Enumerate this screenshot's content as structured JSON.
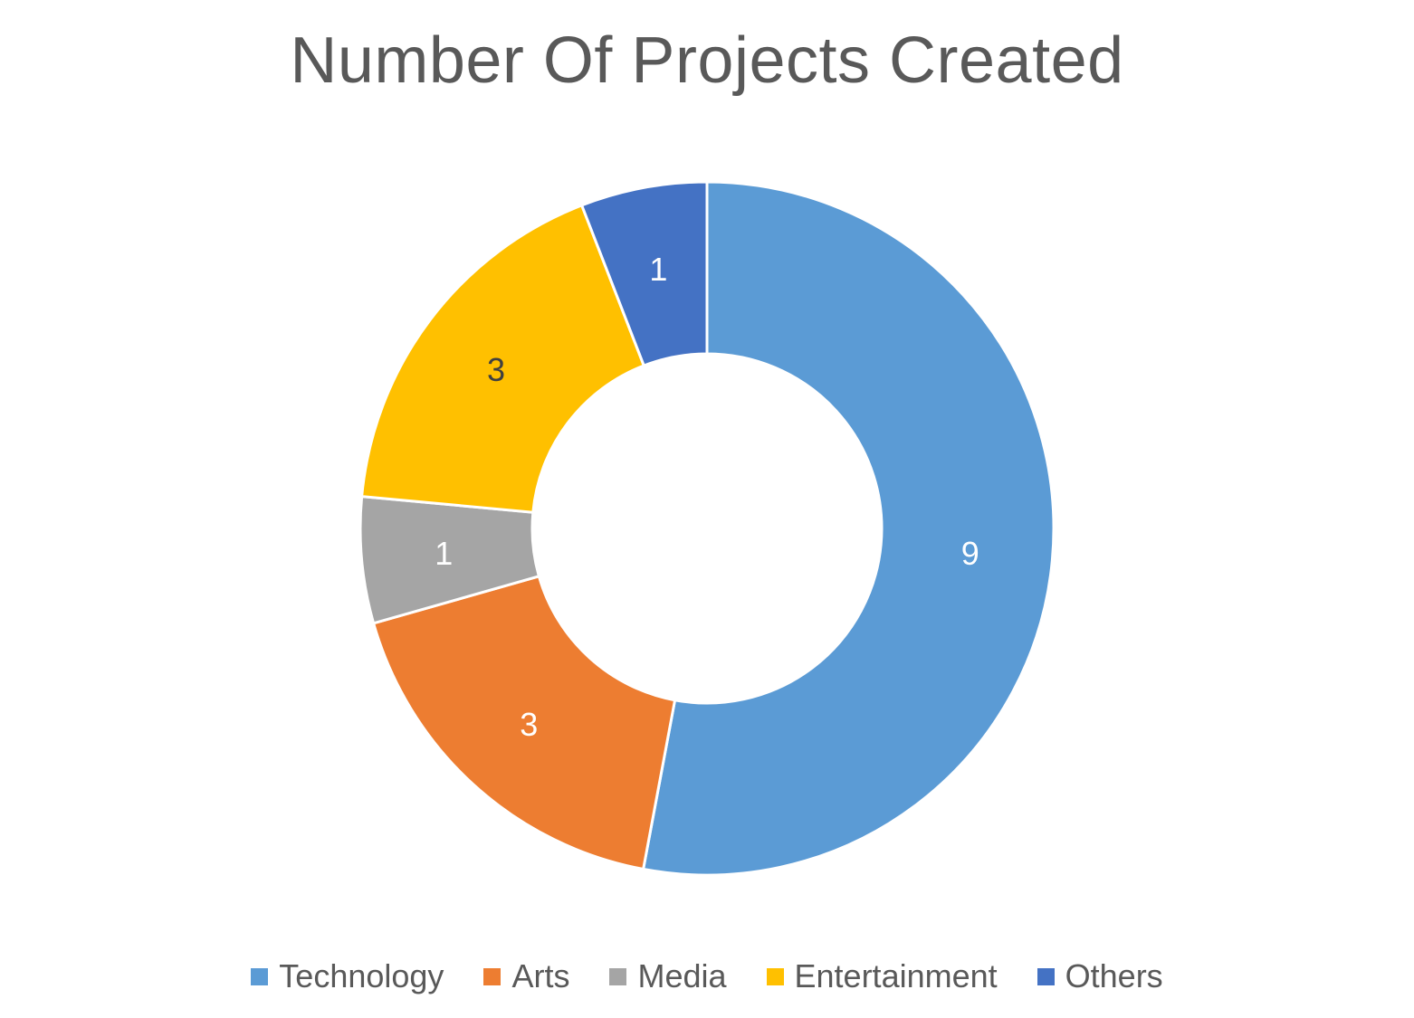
{
  "chart_data": {
    "type": "pie",
    "variant": "donut",
    "title": "Number Of Projects Created",
    "categories": [
      "Technology",
      "Arts",
      "Media",
      "Entertainment",
      "Others"
    ],
    "values": [
      9,
      3,
      1,
      3,
      1
    ],
    "data_labels": [
      "9",
      "3",
      "1",
      "3",
      "1"
    ],
    "colors": [
      "#5B9BD5",
      "#ED7D31",
      "#A5A5A5",
      "#FFC000",
      "#4472C4"
    ],
    "label_colors": [
      "#ffffff",
      "#ffffff",
      "#ffffff",
      "#404040",
      "#ffffff"
    ],
    "legend_position": "bottom",
    "start_angle_deg": 0,
    "direction": "clockwise"
  }
}
